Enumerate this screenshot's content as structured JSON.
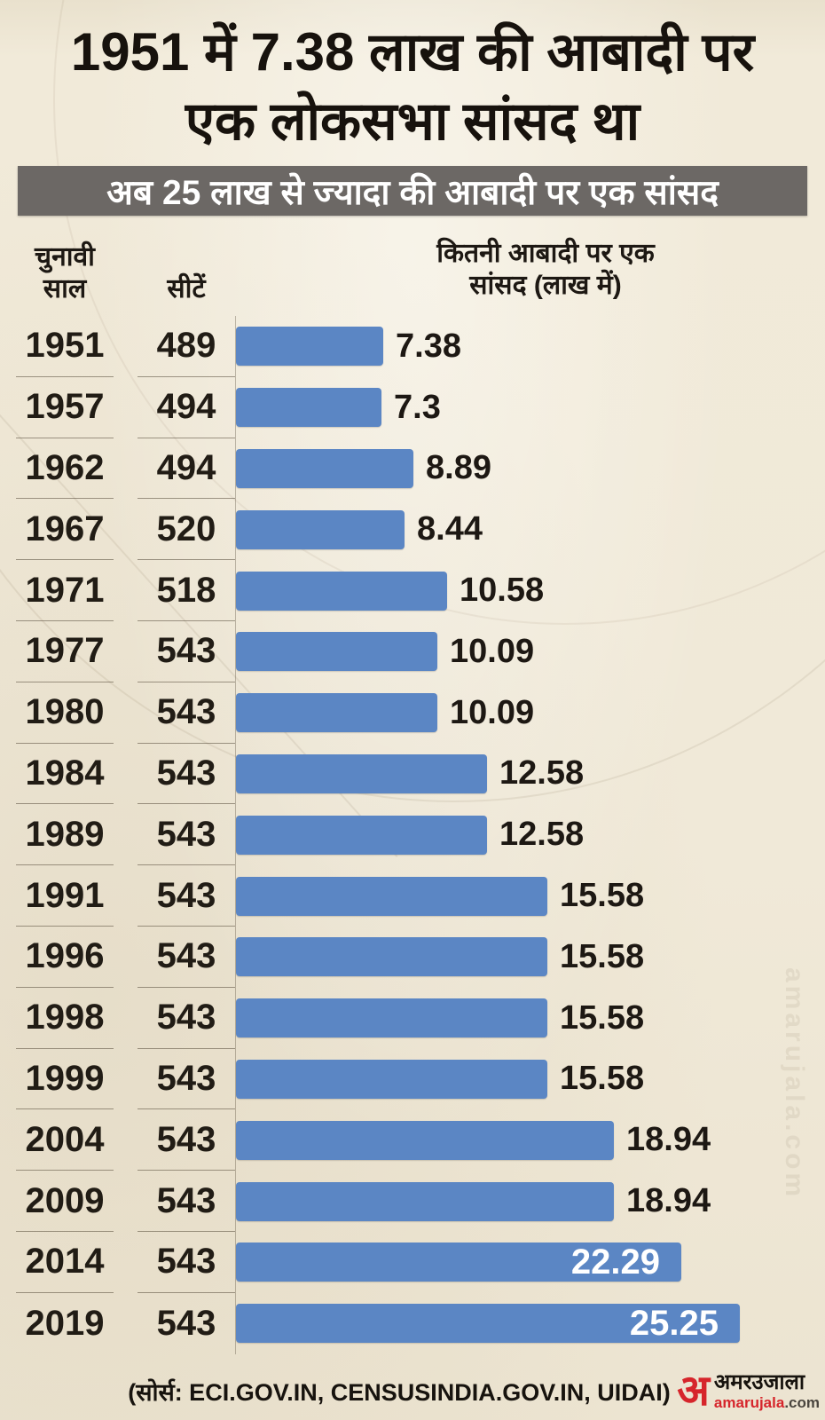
{
  "title": {
    "line1": "1951 में 7.38 लाख की आबादी पर",
    "line2": "एक लोकसभा सांसद था"
  },
  "banner": {
    "text": "अब 25 लाख से ज्यादा की आबादी पर एक सांसद"
  },
  "table": {
    "year_header_line1": "चुनावी",
    "year_header_line2": "साल",
    "seats_header": "सीटें",
    "value_header_line1": "कितनी आबादी पर एक",
    "value_header_line2": "सांसद (लाख में)"
  },
  "chart_data": {
    "type": "bar",
    "orientation": "horizontal",
    "title": "1951 में 7.38 लाख की आबादी पर एक लोकसभा सांसद था",
    "subtitle": "अब 25 लाख से ज्यादा की आबादी पर एक सांसद",
    "categories": [
      "1951",
      "1957",
      "1962",
      "1967",
      "1971",
      "1977",
      "1980",
      "1984",
      "1989",
      "1991",
      "1996",
      "1998",
      "1999",
      "2004",
      "2009",
      "2014",
      "2019"
    ],
    "series": [
      {
        "name": "सीटें",
        "values": [
          489,
          494,
          494,
          520,
          518,
          543,
          543,
          543,
          543,
          543,
          543,
          543,
          543,
          543,
          543,
          543,
          543
        ]
      },
      {
        "name": "कितनी आबादी पर एक सांसद (लाख में)",
        "values": [
          7.38,
          7.3,
          8.89,
          8.44,
          10.58,
          10.09,
          10.09,
          12.58,
          12.58,
          15.58,
          15.58,
          15.58,
          15.58,
          18.94,
          18.94,
          22.29,
          25.25
        ]
      }
    ],
    "rows": [
      {
        "year": "1951",
        "seats": "489",
        "value": 7.38
      },
      {
        "year": "1957",
        "seats": "494",
        "value": 7.3
      },
      {
        "year": "1962",
        "seats": "494",
        "value": 8.89
      },
      {
        "year": "1967",
        "seats": "520",
        "value": 8.44
      },
      {
        "year": "1971",
        "seats": "518",
        "value": 10.58
      },
      {
        "year": "1977",
        "seats": "543",
        "value": 10.09
      },
      {
        "year": "1980",
        "seats": "543",
        "value": 10.09
      },
      {
        "year": "1984",
        "seats": "543",
        "value": 12.58
      },
      {
        "year": "1989",
        "seats": "543",
        "value": 12.58
      },
      {
        "year": "1991",
        "seats": "543",
        "value": 15.58
      },
      {
        "year": "1996",
        "seats": "543",
        "value": 15.58
      },
      {
        "year": "1998",
        "seats": "543",
        "value": 15.58
      },
      {
        "year": "1999",
        "seats": "543",
        "value": 15.58
      },
      {
        "year": "2004",
        "seats": "543",
        "value": 18.94
      },
      {
        "year": "2009",
        "seats": "543",
        "value": 18.94
      },
      {
        "year": "2014",
        "seats": "543",
        "value": 22.29
      },
      {
        "year": "2019",
        "seats": "543",
        "value": 25.25
      }
    ],
    "xlim": [
      0,
      26
    ],
    "grid": false,
    "legend_position": "none",
    "bar_color": "#5b86c4",
    "value_label_color_outside": "#1d1813",
    "value_label_color_inside": "#ffffff"
  },
  "footer": {
    "source": "(सोर्स: ECI.GOV.IN, CENSUSINDIA.GOV.IN, UIDAI)",
    "logo": {
      "mark": "अ",
      "name": "अमरउजाला",
      "domain_main": "amarujala",
      "domain_suffix": ".com"
    }
  },
  "watermark": {
    "text": "amarujala.com"
  },
  "colors": {
    "background": "#f0e9d8",
    "banner_bg": "#6c6865",
    "banner_text": "#ffffff",
    "bar": "#5b86c4",
    "text": "#1d1813",
    "logo_red": "#d6252b"
  }
}
